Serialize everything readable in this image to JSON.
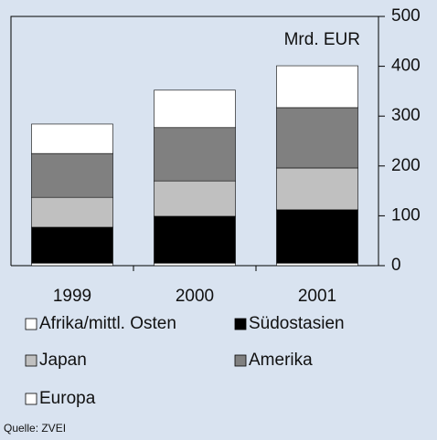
{
  "chart_data": {
    "type": "bar",
    "stacked": true,
    "unit_label": "Mrd. EUR",
    "source": "Quelle: ZVEI",
    "categories": [
      "1999",
      "2000",
      "2001"
    ],
    "series": [
      {
        "name": "Europa",
        "color": "#ffffff",
        "values": [
          5,
          5,
          5
        ]
      },
      {
        "name": "Südostasien",
        "color": "#000000",
        "values": [
          72,
          94,
          107
        ]
      },
      {
        "name": "Japan",
        "color": "#c0c0c0",
        "values": [
          60,
          71,
          84
        ]
      },
      {
        "name": "Amerika",
        "color": "#808080",
        "values": [
          88,
          107,
          121
        ]
      },
      {
        "name": "Afrika/mittl. Osten",
        "color": "#ffffff",
        "values": [
          59,
          75,
          84
        ]
      }
    ],
    "ylim": [
      0,
      500
    ],
    "yticks": [
      0,
      100,
      200,
      300,
      400,
      500
    ],
    "grid": false
  }
}
